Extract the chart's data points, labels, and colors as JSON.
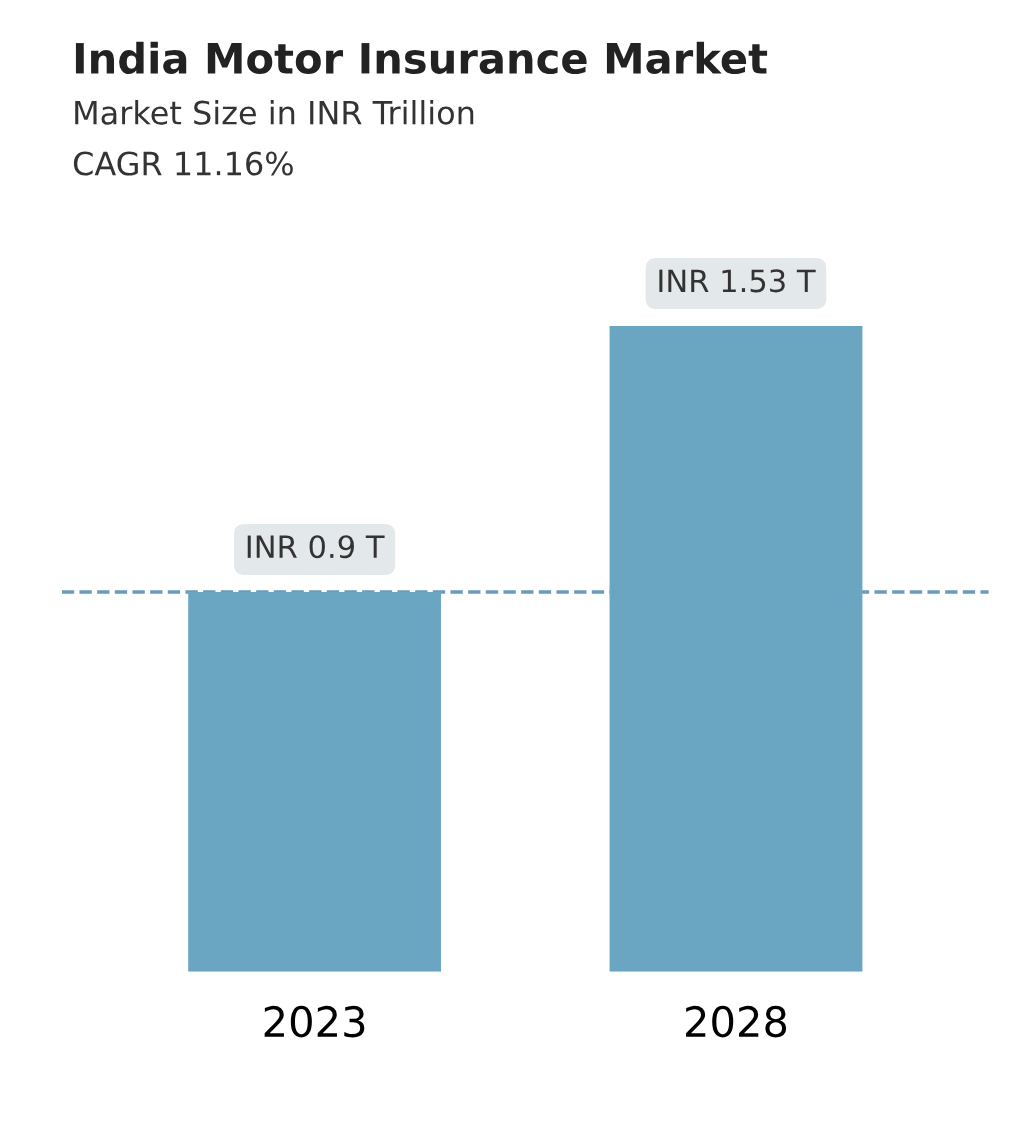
{
  "chart_data": {
    "type": "bar",
    "title": "India Motor Insurance Market",
    "subtitle": "Market Size in INR Trillion",
    "annotations": [
      "CAGR 11.16%"
    ],
    "categories": [
      "2023",
      "2028"
    ],
    "values": [
      0.9,
      1.53
    ],
    "color": "#6aa6c2",
    "value_labels": [
      "INR 0.9 T",
      "INR 1.53 T"
    ],
    "ref_lines": [
      {
        "axis": "y",
        "value": 0.9,
        "label": null,
        "color": "#6a9bbd",
        "line_style": "dashed"
      }
    ],
    "grid": false,
    "legend": false
  }
}
